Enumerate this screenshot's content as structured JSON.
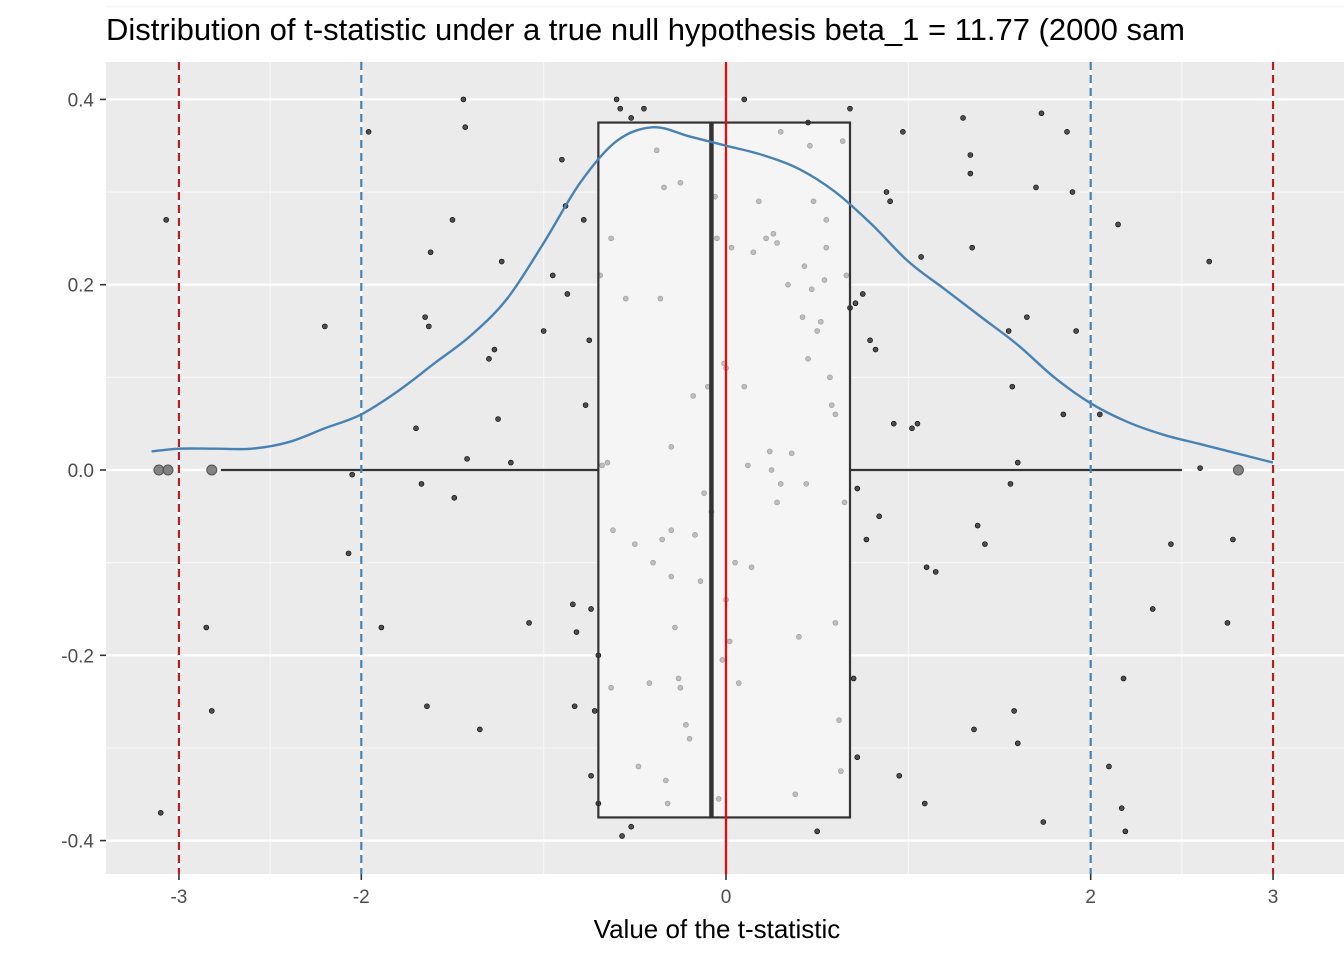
{
  "chart_data": {
    "type": "scatter",
    "title": "Distribution of t-statistic under a true null hypothesis beta_1 = 11.77 (2000 sam",
    "xlabel": "Value of the t-statistic",
    "ylabel": "",
    "xlim": [
      -3.4,
      3.25
    ],
    "ylim": [
      -0.435,
      0.44
    ],
    "x_ticks": [
      -3,
      -2,
      0,
      2,
      3
    ],
    "x_tick_labels": [
      "-3",
      "-2",
      "0",
      "2",
      "3"
    ],
    "y_ticks": [
      -0.4,
      -0.2,
      0.0,
      0.2,
      0.4
    ],
    "y_tick_labels": [
      "-0.4",
      "-0.2",
      "0.0",
      "0.2",
      "0.4"
    ],
    "grid": true,
    "reference_lines": [
      {
        "x": -3,
        "color": "#b22222",
        "style": "dashed"
      },
      {
        "x": -2,
        "color": "#4682b4",
        "style": "dashed"
      },
      {
        "x": 0,
        "color": "#ff0000",
        "style": "solid"
      },
      {
        "x": 2,
        "color": "#4682b4",
        "style": "dashed"
      },
      {
        "x": 3,
        "color": "#b22222",
        "style": "dashed"
      }
    ],
    "boxplot": {
      "q1": -0.7,
      "median": -0.08,
      "q3": 0.68,
      "whisker_low": -2.77,
      "whisker_high": 2.5,
      "height": 0.375,
      "outliers": [
        -3.11,
        -3.06,
        -2.82,
        2.81
      ]
    },
    "density_curve": {
      "color": "#4682b4",
      "x": [
        -3.15,
        -3.0,
        -2.8,
        -2.6,
        -2.4,
        -2.2,
        -2.0,
        -1.8,
        -1.6,
        -1.4,
        -1.2,
        -1.0,
        -0.8,
        -0.6,
        -0.4,
        -0.2,
        0.0,
        0.2,
        0.4,
        0.6,
        0.8,
        1.0,
        1.2,
        1.4,
        1.6,
        1.8,
        2.0,
        2.2,
        2.4,
        2.6,
        2.8,
        3.0
      ],
      "y": [
        0.02,
        0.023,
        0.023,
        0.023,
        0.03,
        0.045,
        0.06,
        0.085,
        0.115,
        0.145,
        0.185,
        0.245,
        0.31,
        0.355,
        0.37,
        0.36,
        0.35,
        0.34,
        0.325,
        0.3,
        0.265,
        0.225,
        0.195,
        0.165,
        0.135,
        0.1,
        0.072,
        0.052,
        0.038,
        0.028,
        0.018,
        0.008
      ]
    },
    "points": [
      [
        -3.07,
        0.27
      ],
      [
        -3.1,
        -0.37
      ],
      [
        -2.85,
        -0.17
      ],
      [
        -2.82,
        -0.26
      ],
      [
        -2.2,
        0.155
      ],
      [
        -2.07,
        -0.09
      ],
      [
        -2.05,
        -0.005
      ],
      [
        -1.96,
        0.365
      ],
      [
        -1.89,
        -0.17
      ],
      [
        -1.7,
        0.045
      ],
      [
        -1.67,
        -0.015
      ],
      [
        -1.65,
        0.165
      ],
      [
        -1.63,
        0.155
      ],
      [
        -1.62,
        0.235
      ],
      [
        -1.64,
        -0.255
      ],
      [
        -1.5,
        0.27
      ],
      [
        -1.49,
        -0.03
      ],
      [
        -1.44,
        0.4
      ],
      [
        -1.43,
        0.37
      ],
      [
        -1.42,
        0.012
      ],
      [
        -1.3,
        0.12
      ],
      [
        -1.35,
        -0.28
      ],
      [
        -1.27,
        0.13
      ],
      [
        -1.25,
        0.055
      ],
      [
        -1.23,
        0.225
      ],
      [
        -1.18,
        0.008
      ],
      [
        -1.08,
        -0.165
      ],
      [
        -1.0,
        0.15
      ],
      [
        -0.95,
        0.21
      ],
      [
        -0.9,
        0.335
      ],
      [
        -0.88,
        0.285
      ],
      [
        -0.87,
        0.19
      ],
      [
        -0.84,
        -0.145
      ],
      [
        -0.83,
        -0.255
      ],
      [
        -0.82,
        -0.175
      ],
      [
        -0.78,
        0.27
      ],
      [
        -0.77,
        0.07
      ],
      [
        -0.75,
        0.14
      ],
      [
        -0.74,
        -0.15
      ],
      [
        -0.74,
        -0.33
      ],
      [
        -0.72,
        -0.26
      ],
      [
        -0.7,
        -0.2
      ],
      [
        -0.7,
        -0.36
      ],
      [
        -0.69,
        0.21
      ],
      [
        -0.68,
        0.005
      ],
      [
        -0.65,
        0.008
      ],
      [
        -0.63,
        0.25
      ],
      [
        -0.63,
        -0.235
      ],
      [
        -0.62,
        -0.065
      ],
      [
        -0.6,
        0.4
      ],
      [
        -0.58,
        0.39
      ],
      [
        -0.57,
        -0.395
      ],
      [
        -0.52,
        0.38
      ],
      [
        -0.52,
        -0.385
      ],
      [
        -0.45,
        0.39
      ],
      [
        0.1,
        0.4
      ],
      [
        0.45,
        0.375
      ],
      [
        0.45,
        0.12
      ],
      [
        0.48,
        0.29
      ],
      [
        0.5,
        -0.39
      ],
      [
        0.55,
        0.27
      ],
      [
        0.6,
        0.06
      ],
      [
        0.68,
        0.39
      ],
      [
        0.72,
        -0.31
      ],
      [
        0.75,
        0.19
      ],
      [
        0.77,
        -0.075
      ],
      [
        0.79,
        0.14
      ],
      [
        0.82,
        0.13
      ],
      [
        0.84,
        -0.05
      ],
      [
        0.88,
        0.3
      ],
      [
        0.9,
        0.29
      ],
      [
        0.92,
        0.05
      ],
      [
        0.95,
        -0.33
      ],
      [
        0.97,
        0.365
      ],
      [
        1.02,
        0.045
      ],
      [
        1.05,
        0.05
      ],
      [
        1.07,
        0.23
      ],
      [
        1.09,
        -0.36
      ],
      [
        1.1,
        -0.105
      ],
      [
        1.15,
        -0.11
      ],
      [
        1.3,
        0.38
      ],
      [
        1.34,
        0.34
      ],
      [
        1.34,
        0.32
      ],
      [
        1.35,
        0.24
      ],
      [
        1.36,
        -0.28
      ],
      [
        1.38,
        -0.06
      ],
      [
        1.42,
        -0.08
      ],
      [
        1.55,
        0.15
      ],
      [
        1.56,
        -0.015
      ],
      [
        1.57,
        0.09
      ],
      [
        1.58,
        -0.26
      ],
      [
        1.6,
        0.008
      ],
      [
        1.6,
        -0.295
      ],
      [
        1.65,
        0.165
      ],
      [
        1.7,
        0.305
      ],
      [
        1.73,
        0.385
      ],
      [
        1.74,
        -0.38
      ],
      [
        1.85,
        0.06
      ],
      [
        1.87,
        0.365
      ],
      [
        1.9,
        0.3
      ],
      [
        1.92,
        0.15
      ],
      [
        2.05,
        0.06
      ],
      [
        2.1,
        -0.32
      ],
      [
        2.15,
        0.265
      ],
      [
        2.17,
        -0.365
      ],
      [
        2.18,
        -0.225
      ],
      [
        2.19,
        -0.39
      ],
      [
        2.34,
        -0.15
      ],
      [
        2.44,
        -0.08
      ],
      [
        2.6,
        0.002
      ],
      [
        2.65,
        0.225
      ],
      [
        2.75,
        -0.165
      ],
      [
        2.78,
        -0.075
      ],
      [
        -0.55,
        0.185
      ],
      [
        -0.5,
        -0.08
      ],
      [
        -0.48,
        -0.32
      ],
      [
        -0.42,
        -0.23
      ],
      [
        -0.4,
        -0.1
      ],
      [
        -0.38,
        0.345
      ],
      [
        -0.36,
        0.185
      ],
      [
        -0.35,
        -0.075
      ],
      [
        -0.34,
        0.305
      ],
      [
        -0.33,
        -0.335
      ],
      [
        -0.32,
        -0.36
      ],
      [
        -0.3,
        -0.065
      ],
      [
        -0.3,
        -0.115
      ],
      [
        -0.3,
        0.025
      ],
      [
        -0.28,
        -0.17
      ],
      [
        -0.26,
        -0.225
      ],
      [
        -0.25,
        0.31
      ],
      [
        -0.25,
        -0.235
      ],
      [
        -0.22,
        -0.275
      ],
      [
        -0.2,
        -0.29
      ],
      [
        -0.18,
        0.08
      ],
      [
        -0.17,
        -0.07
      ],
      [
        -0.14,
        -0.12
      ],
      [
        -0.12,
        -0.025
      ],
      [
        -0.1,
        0.09
      ],
      [
        -0.08,
        -0.045
      ],
      [
        -0.06,
        0.295
      ],
      [
        -0.05,
        0.25
      ],
      [
        -0.04,
        -0.355
      ],
      [
        -0.02,
        -0.205
      ],
      [
        -0.01,
        0.115
      ],
      [
        0.0,
        0.11
      ],
      [
        0.0,
        -0.14
      ],
      [
        0.02,
        -0.185
      ],
      [
        0.03,
        0.24
      ],
      [
        0.05,
        -0.1
      ],
      [
        0.07,
        -0.23
      ],
      [
        0.1,
        0.09
      ],
      [
        0.12,
        0.005
      ],
      [
        0.14,
        -0.105
      ],
      [
        0.15,
        0.235
      ],
      [
        0.18,
        0.29
      ],
      [
        0.22,
        0.25
      ],
      [
        0.24,
        0.02
      ],
      [
        0.25,
        0.0
      ],
      [
        0.26,
        0.255
      ],
      [
        0.28,
        -0.035
      ],
      [
        0.28,
        0.245
      ],
      [
        0.3,
        0.365
      ],
      [
        0.3,
        -0.015
      ],
      [
        0.34,
        0.2
      ],
      [
        0.36,
        0.018
      ],
      [
        0.38,
        -0.35
      ],
      [
        0.4,
        -0.18
      ],
      [
        0.43,
        0.22
      ],
      [
        0.42,
        0.165
      ],
      [
        0.44,
        -0.015
      ],
      [
        0.46,
        0.35
      ],
      [
        0.47,
        0.195
      ],
      [
        0.5,
        0.15
      ],
      [
        0.52,
        0.16
      ],
      [
        0.54,
        0.205
      ],
      [
        0.55,
        0.24
      ],
      [
        0.57,
        0.1
      ],
      [
        0.58,
        0.07
      ],
      [
        0.6,
        -0.165
      ],
      [
        0.62,
        -0.27
      ],
      [
        0.63,
        -0.325
      ],
      [
        0.64,
        0.355
      ],
      [
        0.65,
        -0.035
      ],
      [
        0.66,
        0.21
      ],
      [
        0.68,
        0.175
      ],
      [
        0.7,
        -0.225
      ],
      [
        0.71,
        0.18
      ],
      [
        0.72,
        -0.02
      ]
    ]
  }
}
